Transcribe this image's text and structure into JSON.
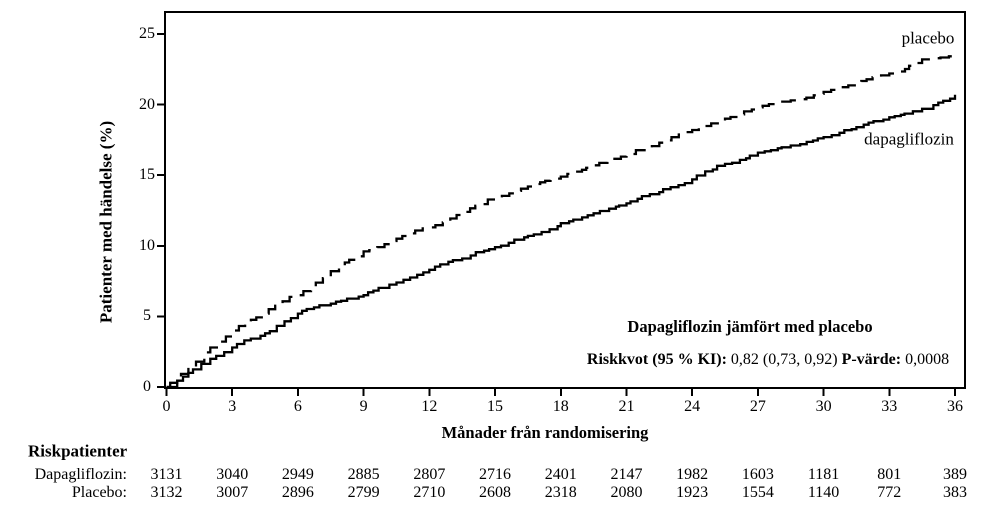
{
  "colors": {
    "curve": "#000000",
    "text": "#000000",
    "background": "#ffffff"
  },
  "chart_data": {
    "type": "line",
    "subtype": "kaplan-meier-cumulative-incidence",
    "title": "",
    "xlabel": "Månader från randomisering",
    "ylabel": "Patienter med händelse (%)",
    "xlim": [
      0,
      36
    ],
    "ylim": [
      0,
      25
    ],
    "x_ticks": [
      0,
      3,
      6,
      9,
      12,
      15,
      18,
      21,
      24,
      27,
      30,
      33,
      36
    ],
    "y_ticks": [
      0,
      5,
      10,
      15,
      20,
      25
    ],
    "grid": false,
    "legend_position": "labels-at-line-ends",
    "series": [
      {
        "name": "placebo",
        "line_style": "dashed",
        "color": "#000000",
        "x": [
          0,
          1,
          2,
          3,
          4.5,
          6,
          7.5,
          9,
          10.5,
          12,
          13.5,
          15,
          16.5,
          18,
          19.5,
          21,
          22.5,
          24,
          25.5,
          27,
          28.5,
          30,
          31.5,
          33,
          34.5,
          36
        ],
        "values": [
          0,
          1.4,
          2.8,
          4.0,
          5.2,
          6.5,
          8.2,
          9.6,
          10.5,
          11.3,
          12.4,
          13.4,
          14.2,
          14.9,
          15.7,
          16.4,
          17.3,
          18.2,
          19.0,
          19.8,
          20.3,
          20.9,
          21.5,
          22.2,
          23.2,
          23.5
        ]
      },
      {
        "name": "dapagliflozin",
        "line_style": "solid",
        "color": "#000000",
        "x": [
          0,
          1,
          2,
          3,
          4.5,
          6,
          7.5,
          9,
          10.5,
          12,
          13.5,
          15,
          16.5,
          18,
          19.5,
          21,
          22.5,
          24,
          25.5,
          27,
          28.5,
          30,
          31.5,
          33,
          34.5,
          36
        ],
        "values": [
          0,
          1.0,
          2.0,
          2.8,
          3.8,
          5.2,
          5.9,
          6.5,
          7.4,
          8.3,
          9.1,
          9.9,
          10.7,
          11.6,
          12.3,
          13.0,
          13.8,
          14.7,
          15.8,
          16.6,
          17.1,
          17.7,
          18.4,
          19.1,
          19.7,
          20.7
        ]
      }
    ],
    "annotations": [
      "Dapagliflozin jämfört med placebo",
      "Riskkvot (95 % KI): 0,82 (0,73, 0,92) P-värde: 0,0008"
    ]
  },
  "annotation": {
    "title": "Dapagliflozin jämfört med placebo",
    "hr_label": "Riskkvot (95 % KI):",
    "hr_value": "0,82 (0,73, 0,92)",
    "p_label": "P-värde:",
    "p_value": "0,0008"
  },
  "risk_table": {
    "title": "Riskpatienter",
    "time_points": [
      0,
      3,
      6,
      9,
      12,
      15,
      18,
      21,
      24,
      27,
      30,
      33,
      36
    ],
    "rows": [
      {
        "label": "Dapagliflozin:",
        "counts": [
          3131,
          3040,
          2949,
          2885,
          2807,
          2716,
          2401,
          2147,
          1982,
          1603,
          1181,
          801,
          389
        ]
      },
      {
        "label": "Placebo:",
        "counts": [
          3132,
          3007,
          2896,
          2799,
          2710,
          2608,
          2318,
          2080,
          1923,
          1554,
          1140,
          772,
          383
        ]
      }
    ]
  }
}
